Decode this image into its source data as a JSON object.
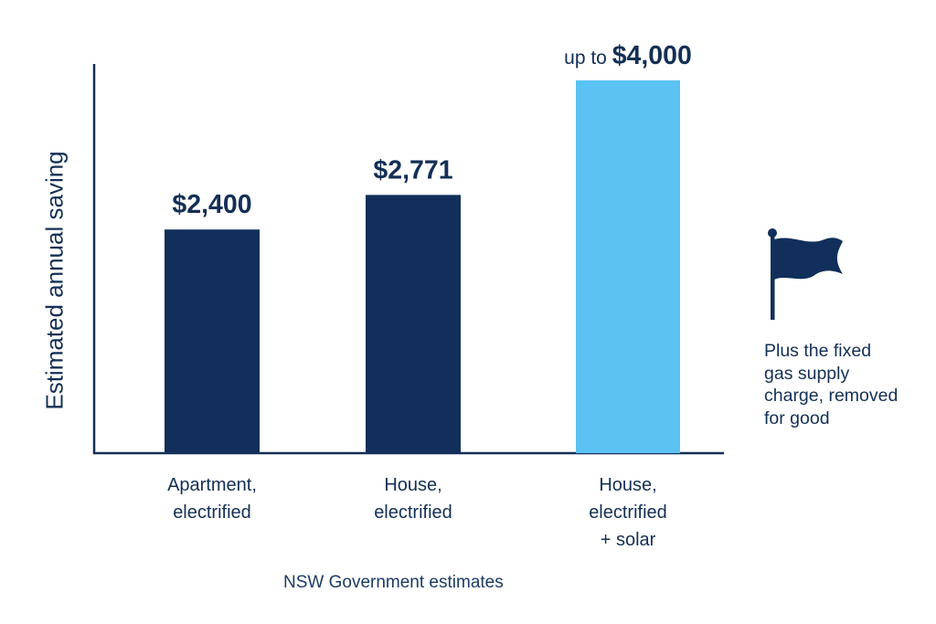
{
  "chart_data": {
    "type": "bar",
    "ylabel": "Estimated annual saving",
    "ylim": [
      0,
      4000
    ],
    "grid": false,
    "categories": [
      [
        "Apartment,",
        "electrified"
      ],
      [
        "House,",
        "electrified"
      ],
      [
        "House,",
        "electrified",
        "+ solar"
      ]
    ],
    "values": [
      2400,
      2771,
      4000
    ],
    "value_labels": [
      {
        "prefix": "",
        "value": "$2,400"
      },
      {
        "prefix": "",
        "value": "$2,771"
      },
      {
        "prefix": "up to ",
        "value": "$4,000"
      }
    ],
    "colors": [
      "#112f5a",
      "#112f5a",
      "#5bc2f2"
    ]
  },
  "source_note": "NSW Government estimates",
  "side_note": {
    "icon": "flag-icon",
    "lines": [
      "Plus the fixed",
      "gas supply",
      "charge, removed",
      "for good"
    ]
  },
  "colors": {
    "text": "#142f55",
    "axis": "#142f55"
  }
}
